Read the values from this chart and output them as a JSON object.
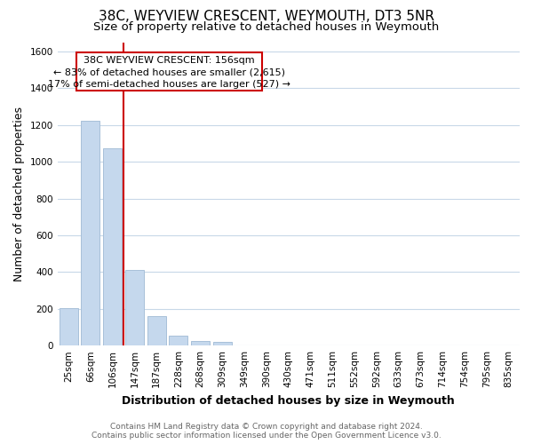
{
  "title": "38C, WEYVIEW CRESCENT, WEYMOUTH, DT3 5NR",
  "subtitle": "Size of property relative to detached houses in Weymouth",
  "xlabel": "Distribution of detached houses by size in Weymouth",
  "ylabel": "Number of detached properties",
  "bar_labels": [
    "25sqm",
    "66sqm",
    "106sqm",
    "147sqm",
    "187sqm",
    "228sqm",
    "268sqm",
    "309sqm",
    "349sqm",
    "390sqm",
    "430sqm",
    "471sqm",
    "511sqm",
    "552sqm",
    "592sqm",
    "633sqm",
    "673sqm",
    "714sqm",
    "754sqm",
    "795sqm",
    "835sqm"
  ],
  "bar_values": [
    205,
    1225,
    1075,
    410,
    160,
    55,
    25,
    18,
    0,
    0,
    0,
    0,
    0,
    0,
    0,
    0,
    0,
    0,
    0,
    0,
    0
  ],
  "bar_color": "#c5d8ed",
  "bar_edge_color": "#a8c0d9",
  "ylim": [
    0,
    1650
  ],
  "yticks": [
    0,
    200,
    400,
    600,
    800,
    1000,
    1200,
    1400,
    1600
  ],
  "property_line_color": "#cc0000",
  "annotation_text_line1": "38C WEYVIEW CRESCENT: 156sqm",
  "annotation_text_line2": "← 83% of detached houses are smaller (2,615)",
  "annotation_text_line3": "17% of semi-detached houses are larger (527) →",
  "annotation_box_color": "#ffffff",
  "annotation_box_edge_color": "#cc0000",
  "footer_line1": "Contains HM Land Registry data © Crown copyright and database right 2024.",
  "footer_line2": "Contains public sector information licensed under the Open Government Licence v3.0.",
  "background_color": "#ffffff",
  "grid_color": "#c8d8e8",
  "title_fontsize": 11,
  "subtitle_fontsize": 9.5,
  "axis_label_fontsize": 9,
  "tick_fontsize": 7.5,
  "footer_fontsize": 6.5,
  "annotation_fontsize": 8
}
